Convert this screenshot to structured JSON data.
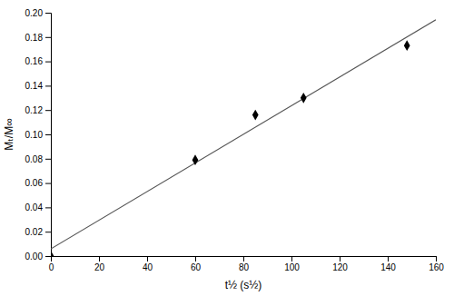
{
  "chart_data": {
    "type": "scatter",
    "xlabel": "t½ (s½)",
    "ylabel": "Mₜ/M∞",
    "xlim": [
      0,
      160
    ],
    "ylim": [
      0.0,
      0.2
    ],
    "xticks": [
      0,
      20,
      40,
      60,
      80,
      100,
      120,
      140,
      160
    ],
    "yticks": [
      {
        "value": 0.0,
        "label": "0.00"
      },
      {
        "value": 0.02,
        "label": "0.02"
      },
      {
        "value": 0.04,
        "label": "0.04"
      },
      {
        "value": 0.06,
        "label": "0.06"
      },
      {
        "value": 0.08,
        "label": "0.08"
      },
      {
        "value": 0.1,
        "label": "0.10"
      },
      {
        "value": 0.12,
        "label": "0.12"
      },
      {
        "value": 0.14,
        "label": "0.14"
      },
      {
        "value": 0.16,
        "label": "0.16"
      },
      {
        "value": 0.18,
        "label": "0.18"
      },
      {
        "value": 0.2,
        "label": "0.20"
      }
    ],
    "series": [
      {
        "type": "line",
        "x": [
          0,
          160
        ],
        "values": [
          0.005891,
          0.194251
        ],
        "color": "#555555",
        "line_style": "solid"
      },
      {
        "type": "scatter",
        "x": [
          0,
          60,
          85,
          105,
          148
        ],
        "values": [
          0.0,
          0.079,
          0.116,
          0.13,
          0.173
        ],
        "color": "black",
        "marker": "diamond"
      }
    ]
  }
}
